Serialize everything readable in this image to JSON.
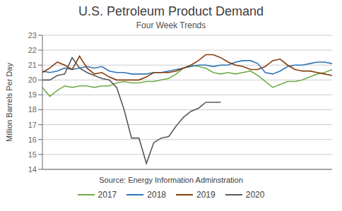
{
  "chart_data": {
    "type": "line",
    "title": "U.S. Petroleum Product Demand",
    "subtitle": "Four Week Trends",
    "source": "Source: Energy Information Adminstration",
    "ylabel": "Million Barrels Per Day",
    "categories": [
      null,
      null,
      null,
      null,
      null,
      null,
      null,
      null,
      null,
      null,
      null,
      null,
      null,
      null,
      null,
      null,
      null,
      null,
      null,
      null,
      null,
      null,
      null,
      null,
      null,
      null,
      null,
      null,
      null,
      null,
      null,
      null,
      null,
      null,
      null,
      null,
      null,
      null,
      null,
      null
    ],
    "series": [
      {
        "name": "2017",
        "color": "#70ad47",
        "values": [
          19.5,
          18.9,
          19.3,
          19.6,
          19.5,
          19.6,
          19.6,
          19.5,
          19.6,
          19.6,
          19.8,
          19.9,
          19.8,
          19.8,
          19.9,
          19.9,
          20.0,
          20.1,
          20.4,
          20.8,
          21.0,
          20.9,
          20.8,
          20.5,
          20.4,
          20.5,
          20.4,
          20.5,
          20.6,
          20.3,
          19.9,
          19.5,
          19.7,
          19.9,
          19.9,
          20.0,
          20.2,
          20.4,
          20.5,
          20.7
        ]
      },
      {
        "name": "2018",
        "color": "#2e75b6",
        "values": [
          20.6,
          20.5,
          20.6,
          20.8,
          20.7,
          20.8,
          20.9,
          20.8,
          20.9,
          20.6,
          20.5,
          20.5,
          20.4,
          20.4,
          20.4,
          20.5,
          20.5,
          20.6,
          20.7,
          20.8,
          20.9,
          21.0,
          21.0,
          20.9,
          21.0,
          21.0,
          21.2,
          21.3,
          21.3,
          21.1,
          20.5,
          20.4,
          20.6,
          20.9,
          21.0,
          21.0,
          21.1,
          21.2,
          21.2,
          21.1
        ]
      },
      {
        "name": "2019",
        "color": "#843c0c",
        "values": [
          20.5,
          20.8,
          21.2,
          21.0,
          20.7,
          21.6,
          20.8,
          20.4,
          20.5,
          20.2,
          20.0,
          20.0,
          20.0,
          20.0,
          20.2,
          20.5,
          20.5,
          20.5,
          20.6,
          20.8,
          21.0,
          21.3,
          21.7,
          21.7,
          21.5,
          21.2,
          21.0,
          20.9,
          20.7,
          20.7,
          20.9,
          21.3,
          21.4,
          21.0,
          20.7,
          20.6,
          20.6,
          20.5,
          20.4,
          20.3
        ]
      },
      {
        "name": "2020",
        "color": "#595959",
        "values": [
          20.0,
          20.0,
          20.3,
          20.4,
          21.5,
          20.8,
          20.5,
          20.3,
          20.1,
          20.0,
          19.5,
          18.0,
          16.1,
          16.1,
          14.4,
          15.8,
          16.1,
          16.2,
          16.9,
          17.5,
          17.9,
          18.1,
          18.5,
          18.5,
          18.5,
          null,
          null,
          null,
          null,
          null,
          null,
          null,
          null,
          null,
          null,
          null,
          null,
          null,
          null,
          null
        ]
      }
    ],
    "ylim": [
      14,
      23
    ],
    "yticks": [
      14,
      15,
      16,
      17,
      18,
      19,
      20,
      21,
      22,
      23
    ],
    "grid": true,
    "legend": "bottom",
    "tick_labels": "y"
  }
}
